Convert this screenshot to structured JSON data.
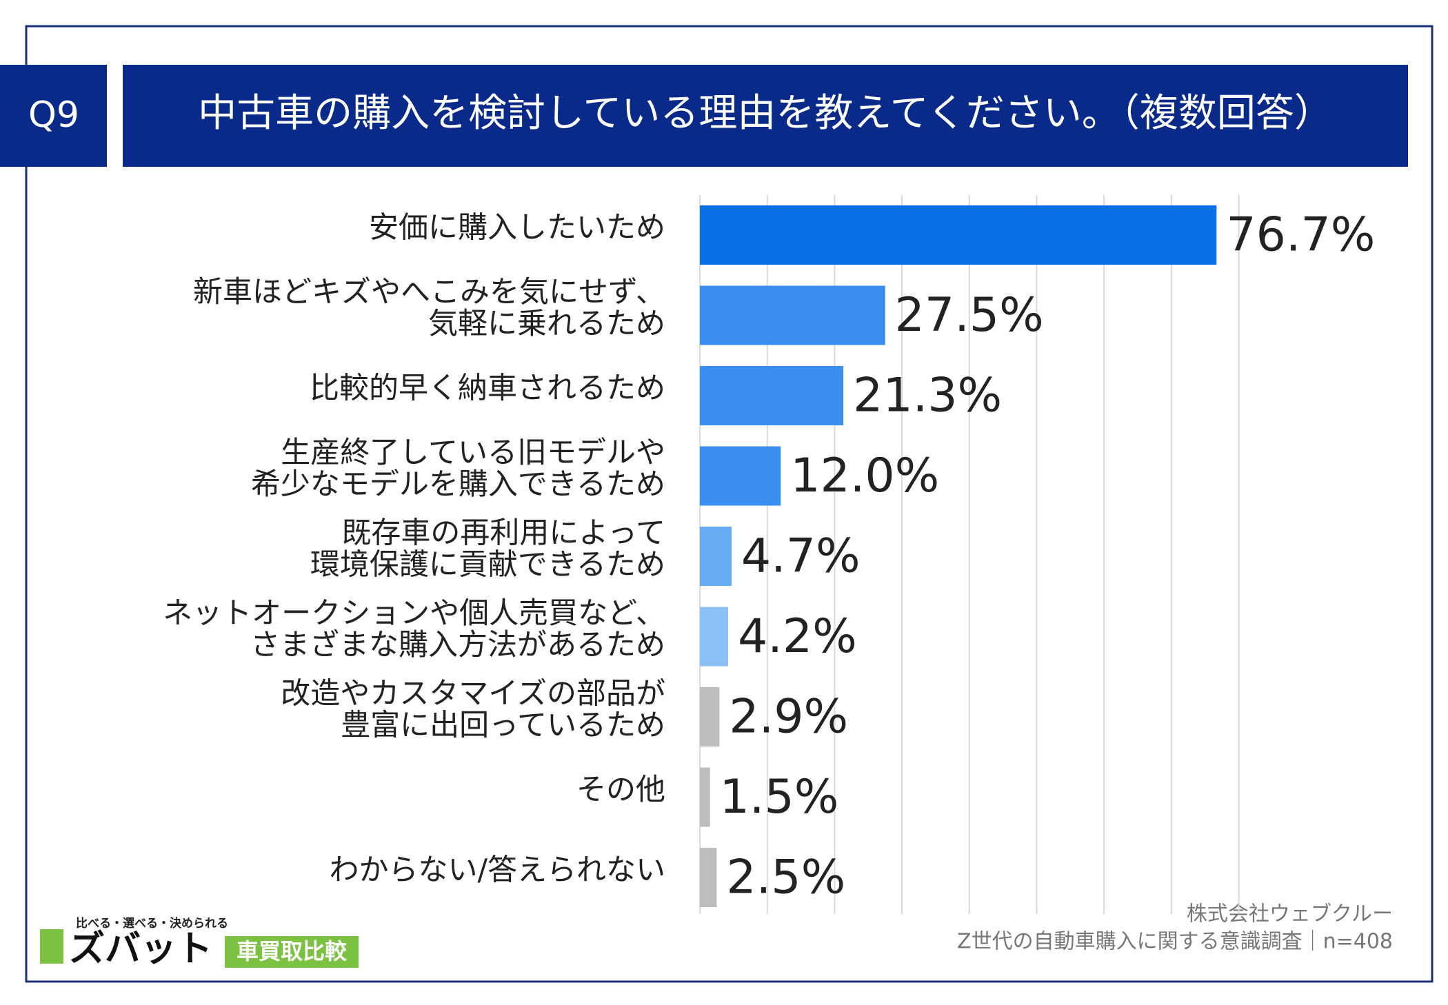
{
  "header": {
    "number": "Q9",
    "title": "中古車の購入を検討している理由を教えてください。（複数回答）"
  },
  "chart_data": {
    "type": "bar",
    "orientation": "horizontal",
    "categories": [
      [
        "安価に購入したいため"
      ],
      [
        "新車ほどキズやへこみを気にせず、",
        "気軽に乗れるため"
      ],
      [
        "比較的早く納車されるため"
      ],
      [
        "生産終了している旧モデルや",
        "希少なモデルを購入できるため"
      ],
      [
        "既存車の再利用によって",
        "環境保護に貢献できるため"
      ],
      [
        "ネットオークションや個人売買など、",
        "さまざまな購入方法があるため"
      ],
      [
        "改造やカスタマイズの部品が",
        "豊富に出回っているため"
      ],
      [
        "その他"
      ],
      [
        "わからない/答えられない"
      ]
    ],
    "values": [
      76.7,
      27.5,
      21.3,
      12.0,
      4.7,
      4.2,
      2.9,
      1.5,
      2.5
    ],
    "value_labels": [
      "76.7%",
      "27.5%",
      "21.3%",
      "12.0%",
      "4.7%",
      "4.2%",
      "2.9%",
      "1.5%",
      "2.5%"
    ],
    "colors": [
      "#0b6fe8",
      "#3a8ef0",
      "#3a8ef0",
      "#3a8ef0",
      "#65acf5",
      "#8cc1f7",
      "#bdbdbd",
      "#bdbdbd",
      "#bdbdbd"
    ],
    "xlim": [
      0,
      80
    ],
    "xticks": [
      0,
      10,
      20,
      30,
      40,
      50,
      60,
      70,
      80
    ],
    "grid": true
  },
  "footer": {
    "source": [
      "株式会社ウェブクルー",
      "Z世代の自動車購入に関する意識調査｜n=408"
    ],
    "logo": {
      "tagline": "比べる・選べる・決められる",
      "name": "ズバット",
      "service": "車買取比較"
    }
  }
}
